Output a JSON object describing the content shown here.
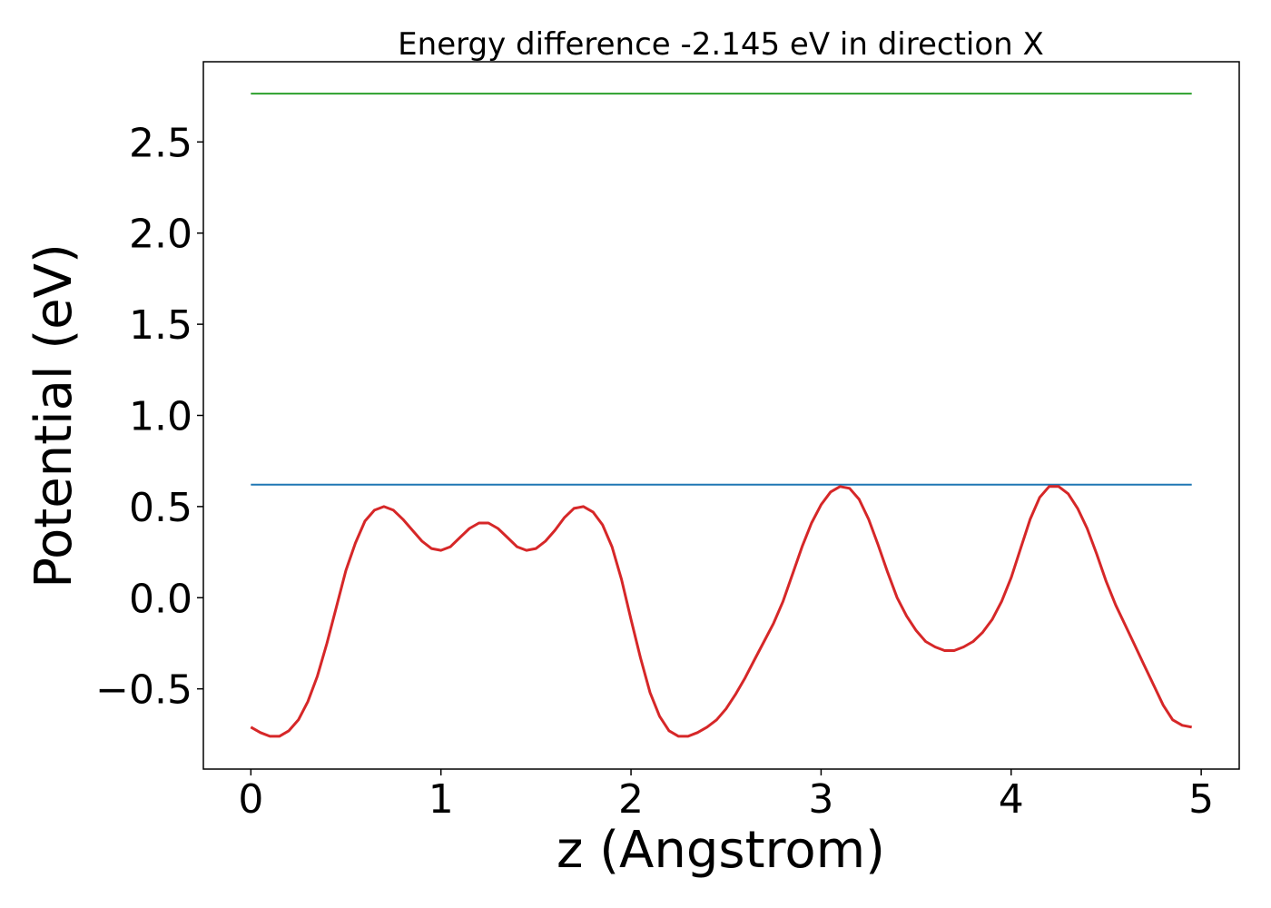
{
  "chart_data": {
    "type": "line",
    "title": "Energy difference -2.145 eV in direction X",
    "xlabel": "z (Angstrom)",
    "ylabel": "Potential (eV)",
    "xlim": [
      -0.25,
      5.2
    ],
    "ylim": [
      -0.94,
      2.94
    ],
    "xticks": [
      0,
      1,
      2,
      3,
      4,
      5
    ],
    "xtick_labels": [
      "0",
      "1",
      "2",
      "3",
      "4",
      "5"
    ],
    "yticks": [
      -0.5,
      0.0,
      0.5,
      1.0,
      1.5,
      2.0,
      2.5
    ],
    "ytick_labels": [
      "−0.5",
      "0.0",
      "0.5",
      "1.0",
      "1.5",
      "2.0",
      "2.5"
    ],
    "grid": false,
    "series": [
      {
        "color": "#2ca02c",
        "x": [
          0,
          4.95
        ],
        "y": [
          2.765,
          2.765
        ]
      },
      {
        "color": "#1f77b4",
        "x": [
          0,
          4.95
        ],
        "y": [
          0.62,
          0.62
        ]
      },
      {
        "color": "#d62728",
        "x": [
          0.0,
          0.05,
          0.1,
          0.15,
          0.2,
          0.25,
          0.3,
          0.35,
          0.4,
          0.45,
          0.5,
          0.55,
          0.6,
          0.65,
          0.7,
          0.75,
          0.8,
          0.85,
          0.9,
          0.95,
          1.0,
          1.05,
          1.1,
          1.15,
          1.2,
          1.25,
          1.3,
          1.35,
          1.4,
          1.45,
          1.5,
          1.55,
          1.6,
          1.65,
          1.7,
          1.75,
          1.8,
          1.85,
          1.9,
          1.95,
          2.0,
          2.05,
          2.1,
          2.15,
          2.2,
          2.25,
          2.3,
          2.35,
          2.4,
          2.45,
          2.5,
          2.55,
          2.6,
          2.65,
          2.7,
          2.75,
          2.8,
          2.85,
          2.9,
          2.95,
          3.0,
          3.05,
          3.1,
          3.15,
          3.2,
          3.25,
          3.3,
          3.35,
          3.4,
          3.45,
          3.5,
          3.55,
          3.6,
          3.65,
          3.7,
          3.75,
          3.8,
          3.85,
          3.9,
          3.95,
          4.0,
          4.05,
          4.1,
          4.15,
          4.2,
          4.25,
          4.3,
          4.35,
          4.4,
          4.45,
          4.5,
          4.55,
          4.6,
          4.65,
          4.7,
          4.75,
          4.8,
          4.85,
          4.9,
          4.95
        ],
        "y": [
          -0.71,
          -0.74,
          -0.76,
          -0.76,
          -0.73,
          -0.67,
          -0.57,
          -0.43,
          -0.25,
          -0.05,
          0.15,
          0.3,
          0.42,
          0.48,
          0.5,
          0.48,
          0.43,
          0.37,
          0.31,
          0.27,
          0.26,
          0.28,
          0.33,
          0.38,
          0.41,
          0.41,
          0.38,
          0.33,
          0.28,
          0.26,
          0.27,
          0.31,
          0.37,
          0.44,
          0.49,
          0.5,
          0.47,
          0.4,
          0.28,
          0.1,
          -0.12,
          -0.33,
          -0.52,
          -0.65,
          -0.73,
          -0.76,
          -0.76,
          -0.74,
          -0.71,
          -0.67,
          -0.61,
          -0.53,
          -0.44,
          -0.34,
          -0.24,
          -0.14,
          -0.02,
          0.13,
          0.28,
          0.41,
          0.51,
          0.58,
          0.61,
          0.6,
          0.54,
          0.43,
          0.29,
          0.14,
          0.0,
          -0.1,
          -0.18,
          -0.24,
          -0.27,
          -0.29,
          -0.29,
          -0.27,
          -0.24,
          -0.19,
          -0.12,
          -0.02,
          0.11,
          0.27,
          0.43,
          0.55,
          0.61,
          0.61,
          0.57,
          0.49,
          0.38,
          0.24,
          0.09,
          -0.04,
          -0.15,
          -0.26,
          -0.37,
          -0.48,
          -0.59,
          -0.67,
          -0.7,
          -0.71
        ]
      }
    ]
  }
}
